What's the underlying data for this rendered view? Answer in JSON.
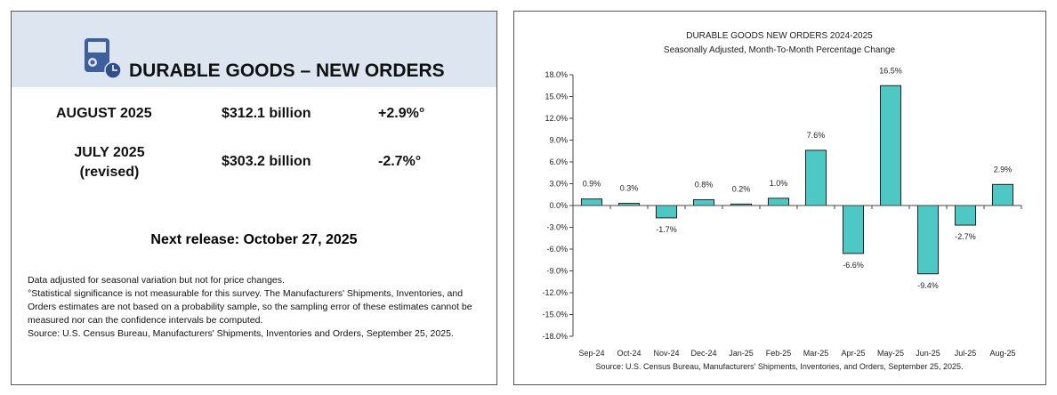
{
  "left": {
    "title": "DURABLE GOODS – NEW ORDERS",
    "rows": [
      {
        "period": "AUGUST 2025",
        "period_note": "",
        "value": "$312.1 billion",
        "change": "+2.9%°"
      },
      {
        "period": "JULY 2025",
        "period_note": "(revised)",
        "value": "$303.2 billion",
        "change": "-2.7%°"
      }
    ],
    "next_release": "Next release:  October 27, 2025",
    "footnotes": [
      "Data adjusted for seasonal variation but not for price changes.",
      "°Statistical significance is not measurable for this survey.  The Manufacturers' Shipments, Inventories, and Orders estimates are not based on a probability sample, so the sampling error of these estimates cannot be measured nor can the confidence intervals be computed.",
      "Source: U.S. Census Bureau, Manufacturers' Shipments, Inventories and Orders, September 25, 2025."
    ],
    "header_color": "#dde5f0",
    "icon": "appliance-clock-icon"
  },
  "chart_data": {
    "type": "bar",
    "title": "DURABLE GOODS NEW ORDERS 2024-2025",
    "subtitle": "Seasonally Adjusted,  Month-To-Month Percentage Change",
    "categories": [
      "Sep-24",
      "Oct-24",
      "Nov-24",
      "Dec-24",
      "Jan-25",
      "Feb-25",
      "Mar-25",
      "Apr-25",
      "May-25",
      "Jun-25",
      "Jul-25",
      "Aug-25"
    ],
    "values": [
      0.9,
      0.3,
      -1.7,
      0.8,
      0.2,
      1.0,
      7.6,
      -6.6,
      16.5,
      -9.4,
      -2.7,
      2.9
    ],
    "data_labels": [
      "0.9%",
      "0.3%",
      "-1.7%",
      "0.8%",
      "0.2%",
      "1.0%",
      "7.6%",
      "-6.6%",
      "16.5%",
      "-9.4%",
      "-2.7%",
      "2.9%"
    ],
    "yticks": [
      "18.0%",
      "15.0%",
      "12.0%",
      "9.0%",
      "6.0%",
      "3.0%",
      "0.0%",
      "-3.0%",
      "-6.0%",
      "-9.0%",
      "-12.0%",
      "-15.0%",
      "-18.0%"
    ],
    "ylim": [
      -18,
      18
    ],
    "xlabel": "",
    "ylabel": "",
    "source": "Source: U.S. Census Bureau, Manufacturers' Shipments, Inventories, and Orders, September 25, 2025.",
    "bar_color": "#4ec8c4"
  }
}
